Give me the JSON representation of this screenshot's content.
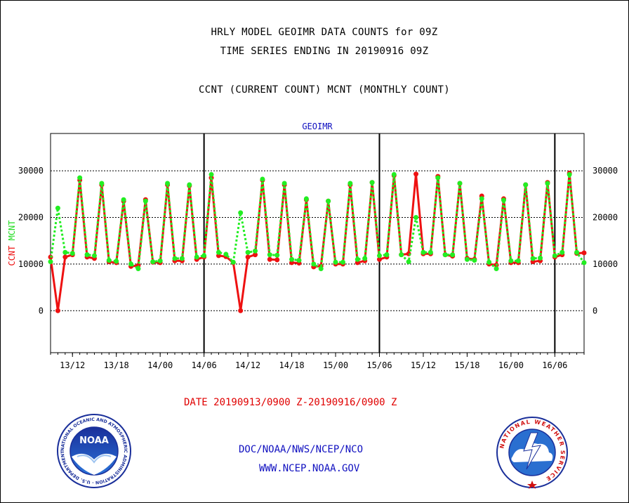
{
  "header": {
    "line1": "HRLY MODEL GEOIMR DATA COUNTS for 09Z",
    "line2": "TIME SERIES ENDING IN 20190916 09Z",
    "line3": "CCNT (CURRENT COUNT) MCNT (MONTHLY COUNT)"
  },
  "footer": {
    "date_range": "DATE 20190913/0900 Z-20190916/0900 Z",
    "doc": "DOC/NOAA/NWS/NCEP/NCO",
    "web": "WWW.NCEP.NOAA.GOV"
  },
  "logos": {
    "noaa_text": "NOAA",
    "noaa_ring_text": "NATIONAL OCEANIC AND ATMOSPHERIC ADMINISTRATION · U.S. DEPARTMENT OF COMMERCE ·",
    "nws_ring_text": "NATIONAL WEATHER SERVICE"
  },
  "chart_data": {
    "type": "line",
    "title": "GEOIMR",
    "ylabel_parts": [
      "CCNT",
      "MCNT"
    ],
    "ylim": [
      -9000,
      38000
    ],
    "y_ticks": [
      0,
      10000,
      20000,
      30000
    ],
    "y_tick_labels": [
      "0",
      "10000",
      "20000",
      "30000"
    ],
    "x_tick_labels": [
      "13/12",
      "13/18",
      "14/00",
      "14/06",
      "14/12",
      "14/18",
      "15/00",
      "15/06",
      "15/12",
      "15/18",
      "16/00",
      "16/06"
    ],
    "colors": {
      "ccnt": "#ee1111",
      "mcnt": "#22ee22",
      "title": "#1010c0",
      "ylabel_ccnt": "#ee1111",
      "ylabel_mcnt": "#22dd22"
    },
    "series": [
      {
        "key": "ccnt",
        "values": [
          11500,
          0,
          11500,
          12000,
          28000,
          11500,
          11200,
          27000,
          10500,
          10300,
          23500,
          9500,
          9700,
          23800,
          10400,
          10300,
          27000,
          10700,
          10700,
          26800,
          11000,
          11500,
          28500,
          11800,
          11600,
          10300,
          0,
          11500,
          12000,
          28000,
          11000,
          10900,
          27000,
          10300,
          10200,
          23800,
          9400,
          9600,
          23500,
          10000,
          10000,
          27000,
          10300,
          10700,
          27500,
          11000,
          11500,
          29000,
          12000,
          12200,
          29300,
          12200,
          12200,
          28800,
          12000,
          11700,
          27300,
          11200,
          11000,
          24600,
          10000,
          9800,
          24000,
          10300,
          10300,
          27000,
          10500,
          10700,
          27500,
          11500,
          12000,
          29500,
          12300,
          12400
        ]
      },
      {
        "key": "mcnt",
        "values": [
          10500,
          22000,
          12500,
          12300,
          28500,
          12000,
          11800,
          27300,
          10800,
          10600,
          23800,
          10000,
          9000,
          23500,
          10500,
          10700,
          27300,
          11200,
          11200,
          27000,
          11500,
          11800,
          29200,
          12500,
          12100,
          10400,
          21000,
          12500,
          12800,
          28200,
          12000,
          11900,
          27300,
          11000,
          10800,
          24000,
          10000,
          9000,
          23500,
          10400,
          10400,
          27300,
          11000,
          11200,
          27500,
          11800,
          12000,
          29200,
          12000,
          10500,
          20000,
          12500,
          12500,
          28500,
          12000,
          12000,
          27300,
          11000,
          10800,
          24000,
          10400,
          9000,
          23700,
          10700,
          10700,
          27000,
          11200,
          11300,
          27300,
          11800,
          12500,
          29200,
          12500,
          10300
        ]
      }
    ]
  }
}
